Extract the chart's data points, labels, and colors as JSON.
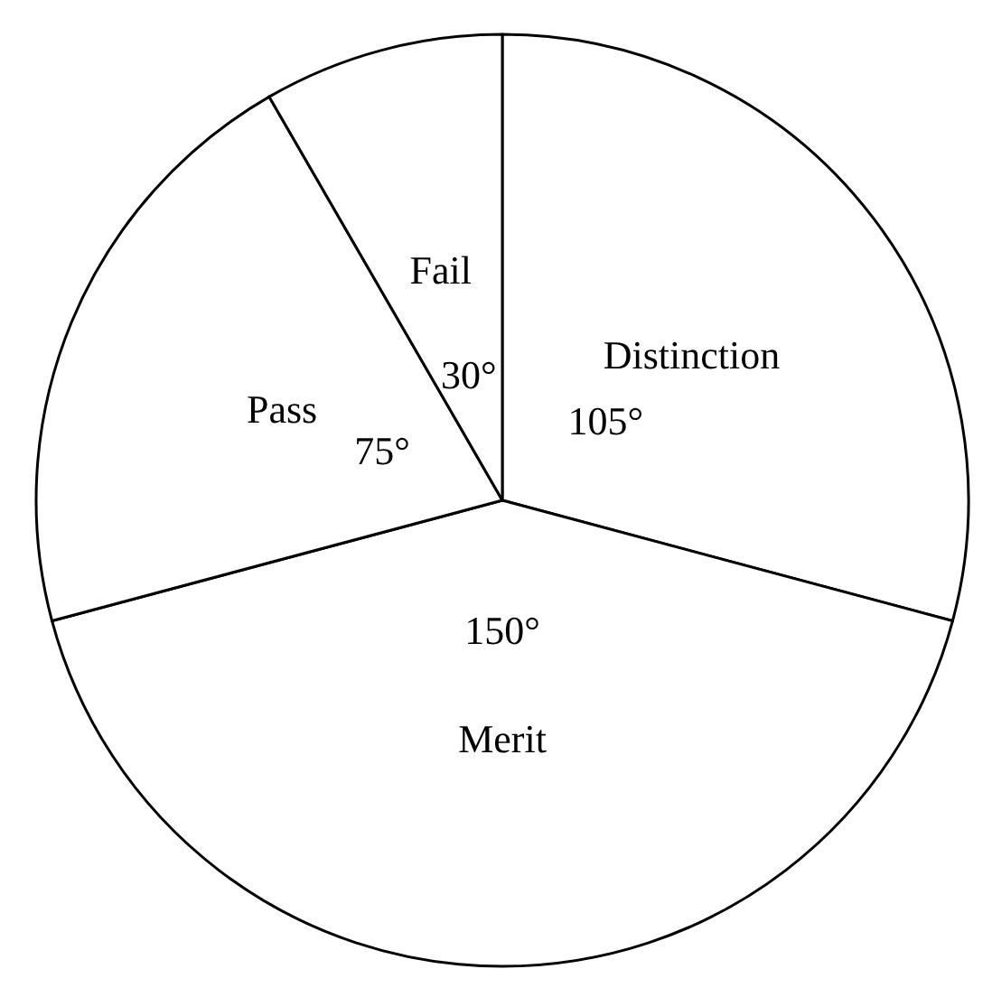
{
  "chart_data": {
    "type": "pie",
    "categories": [
      "Distinction",
      "Merit",
      "Pass",
      "Fail"
    ],
    "values": [
      105,
      150,
      75,
      30
    ],
    "value_labels": [
      "105°",
      "150°",
      "75°",
      "30°"
    ],
    "colors": [
      "#ffffff",
      "#ffffff",
      "#ffffff",
      "#ffffff"
    ],
    "legend": false
  }
}
